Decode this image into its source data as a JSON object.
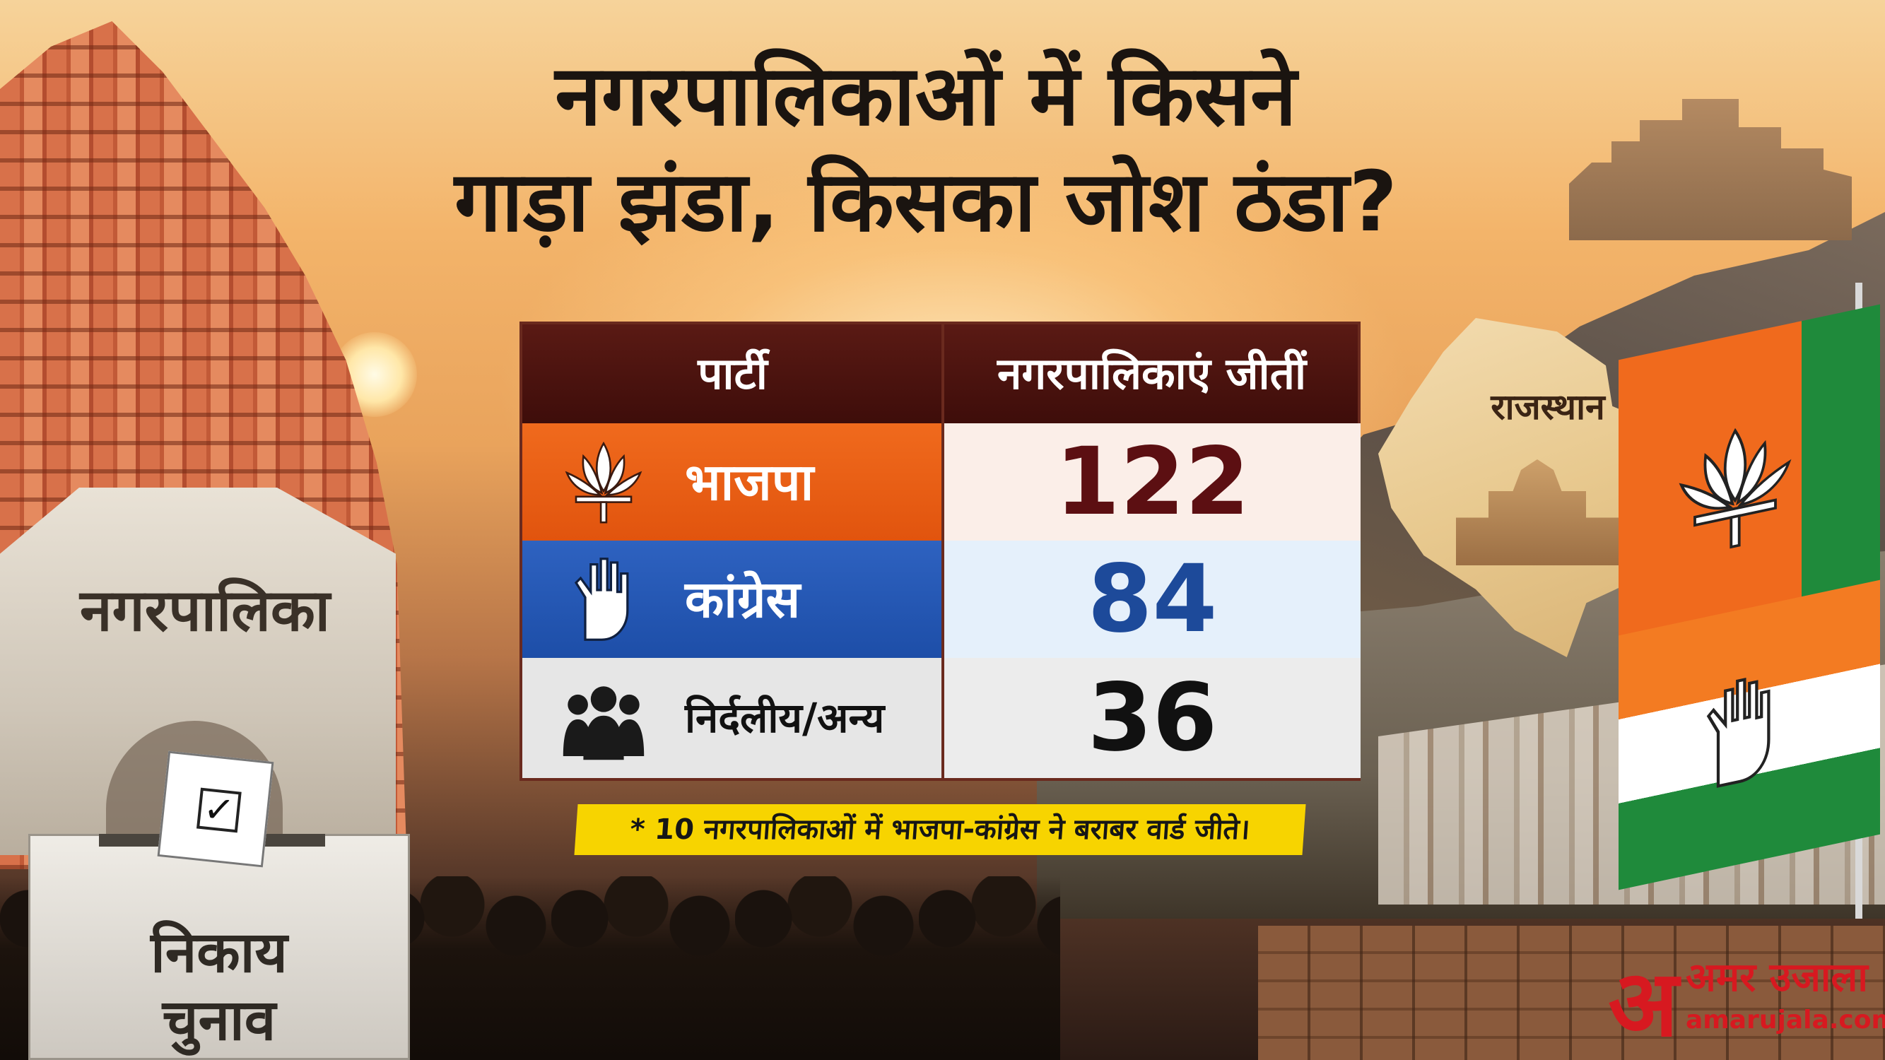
{
  "headline": {
    "line1": "नगरपालिकाओं में किसने",
    "line2": "गाड़ा झंडा, किसका जोश ठंडा?"
  },
  "table": {
    "headers": {
      "party": "पार्टी",
      "won": "नगरपालिकाएं जीतीं"
    },
    "rows": [
      {
        "party": "भाजपा",
        "won": "122",
        "icon": "lotus-icon",
        "color": "#f06a1d"
      },
      {
        "party": "कांग्रेस",
        "won": "84",
        "icon": "hand-icon",
        "color": "#2e62c0"
      },
      {
        "party": "निर्दलीय/अन्य",
        "won": "36",
        "icon": "people-icon",
        "color": "#e6e6e6"
      }
    ]
  },
  "footnote": "* 10 नगरपालिकाओं में भाजपा-कांग्रेस ने बराबर वार्ड जीते।",
  "illustration": {
    "building_sign": "नगरपालिका",
    "ballot_box_label_line1": "निकाय",
    "ballot_box_label_line2": "चुनाव",
    "map_label": "राजस्थान"
  },
  "branding": {
    "logo_mark": "अ",
    "name": "अमर उजाला",
    "url": "amarujala.com",
    "color": "#d71920"
  }
}
